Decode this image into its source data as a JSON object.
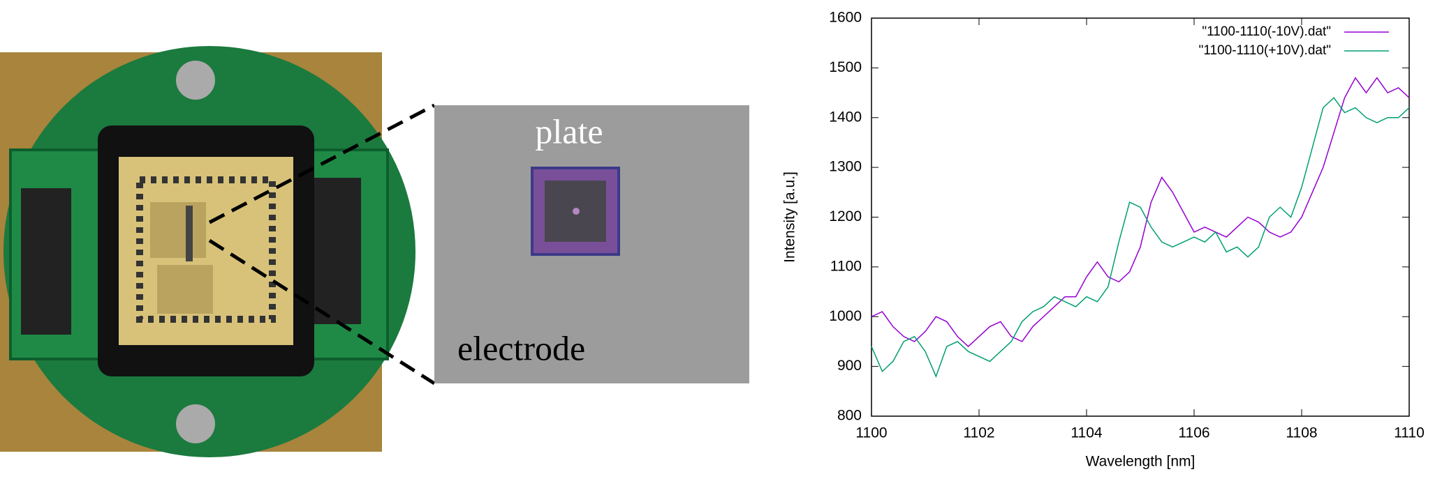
{
  "micrograph": {
    "plate_label": "plate",
    "electrode_label": "electrode"
  },
  "chart_data": {
    "type": "line",
    "xlabel": "Wavelength [nm]",
    "ylabel": "Intensity [a.u.]",
    "x": [
      1100,
      1100.2,
      1100.4,
      1100.6,
      1100.8,
      1101,
      1101.2,
      1101.4,
      1101.6,
      1101.8,
      1102,
      1102.2,
      1102.4,
      1102.6,
      1102.8,
      1103,
      1103.2,
      1103.4,
      1103.6,
      1103.8,
      1104,
      1104.2,
      1104.4,
      1104.6,
      1104.8,
      1105,
      1105.2,
      1105.4,
      1105.6,
      1105.8,
      1106,
      1106.2,
      1106.4,
      1106.6,
      1106.8,
      1107,
      1107.2,
      1107.4,
      1107.6,
      1107.8,
      1108,
      1108.2,
      1108.4,
      1108.6,
      1108.8,
      1109,
      1109.2,
      1109.4,
      1109.6,
      1109.8,
      1110
    ],
    "series": [
      {
        "name": "\"1100-1110(-10V).dat\"",
        "color": "#9400d3",
        "values": [
          1000,
          1010,
          980,
          960,
          950,
          970,
          1000,
          990,
          960,
          940,
          960,
          980,
          990,
          960,
          950,
          980,
          1000,
          1020,
          1040,
          1040,
          1080,
          1110,
          1080,
          1070,
          1090,
          1140,
          1230,
          1280,
          1250,
          1210,
          1170,
          1180,
          1170,
          1160,
          1180,
          1200,
          1190,
          1170,
          1160,
          1170,
          1200,
          1250,
          1300,
          1370,
          1440,
          1480,
          1450,
          1480,
          1450,
          1460,
          1440
        ]
      },
      {
        "name": "\"1100-1110(+10V).dat\"",
        "color": "#009e73",
        "values": [
          940,
          890,
          910,
          950,
          960,
          930,
          880,
          940,
          950,
          930,
          920,
          910,
          930,
          950,
          990,
          1010,
          1020,
          1040,
          1030,
          1020,
          1040,
          1030,
          1060,
          1150,
          1230,
          1220,
          1180,
          1150,
          1140,
          1150,
          1160,
          1150,
          1170,
          1130,
          1140,
          1120,
          1140,
          1200,
          1220,
          1200,
          1260,
          1340,
          1420,
          1440,
          1410,
          1420,
          1400,
          1390,
          1400,
          1400,
          1420
        ]
      }
    ],
    "xlim": [
      1100,
      1110
    ],
    "xticks": [
      1100,
      1102,
      1104,
      1106,
      1108,
      1110
    ],
    "ylim": [
      800,
      1600
    ],
    "yticks": [
      800,
      900,
      1000,
      1100,
      1200,
      1300,
      1400,
      1500,
      1600
    ],
    "legend": "upper-right",
    "grid": false
  }
}
